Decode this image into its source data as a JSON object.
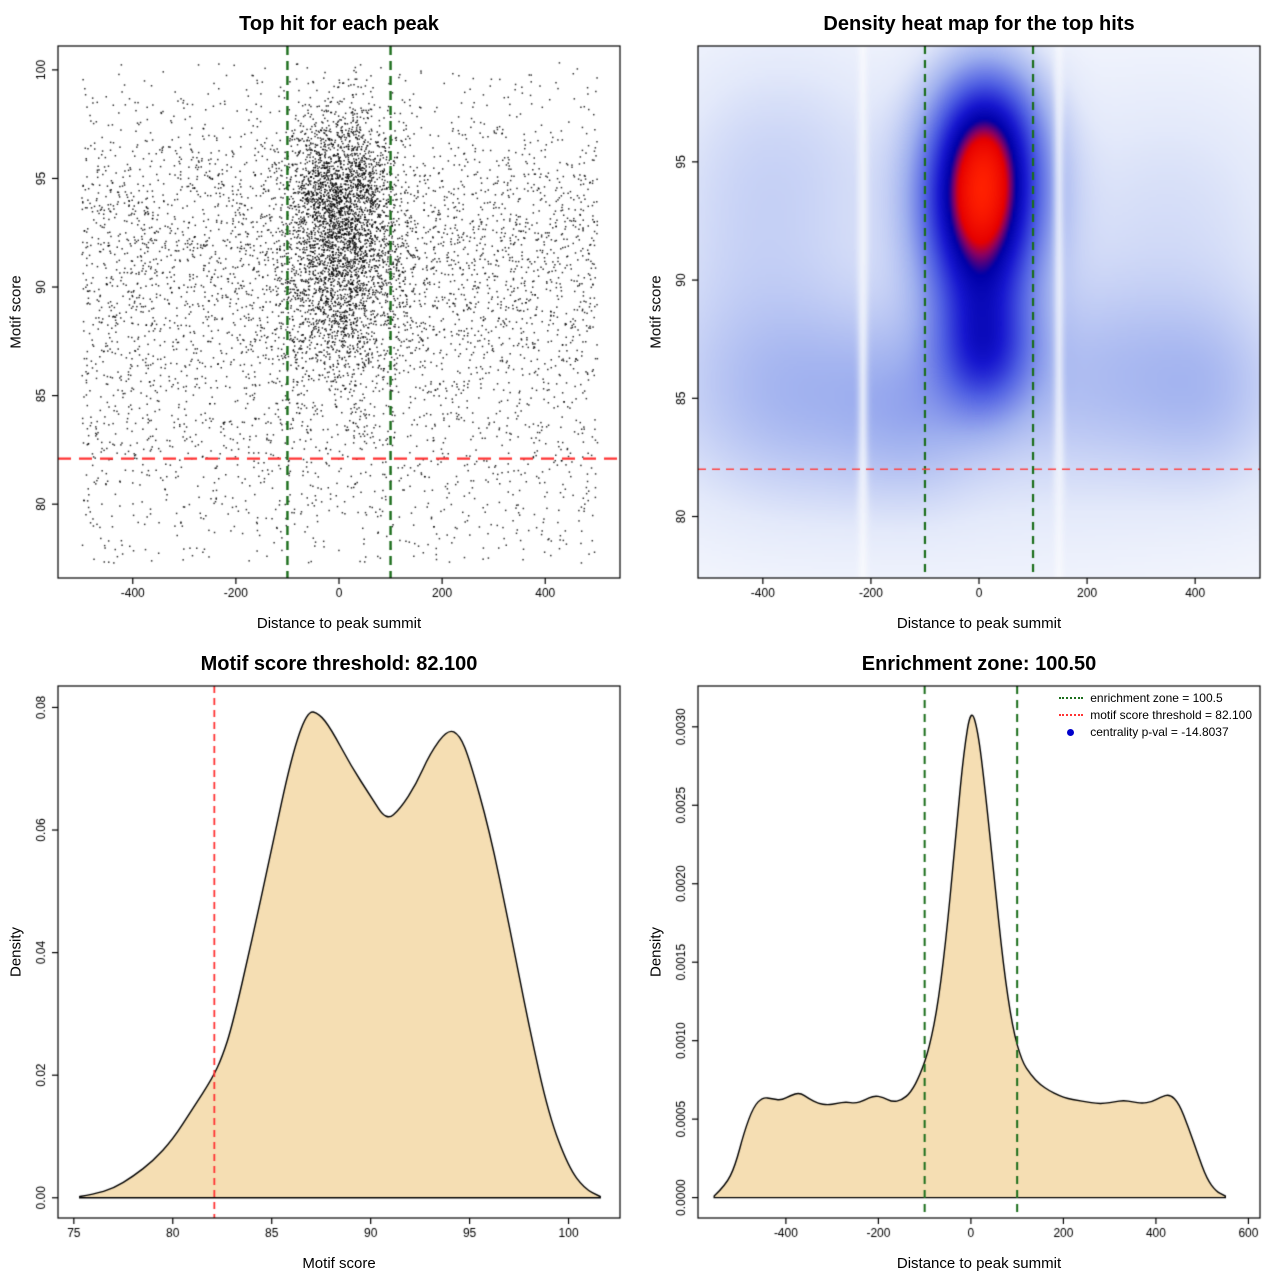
{
  "colors": {
    "density_fill": "#f5deb3",
    "density_stroke": "#000000",
    "threshold_red": "#ff3333",
    "zone_green": "#1b6e1b",
    "heat_max_red": "#ff2000",
    "point_black": "#000000"
  },
  "key_values": {
    "motif_score_threshold": 82.1,
    "enrichment_zone": 100.5,
    "centrality_p_val": -14.8037
  },
  "chart_data": [
    {
      "id": "top-hit-scatter",
      "type": "scatter",
      "title": "Top hit for each peak",
      "xlabel": "Distance to peak summit",
      "ylabel": "Motif score",
      "xlim": [
        -545,
        545
      ],
      "ylim": [
        76.6,
        101.1
      ],
      "xtick_values": [
        -400,
        -200,
        0,
        200,
        400
      ],
      "xtick_labels": [
        "-400",
        "-200",
        "0",
        "200",
        "400"
      ],
      "ytick_values": [
        80,
        85,
        90,
        95,
        100
      ],
      "ytick_labels": [
        "80",
        "85",
        "90",
        "95",
        "100"
      ],
      "points": {
        "seed": 1337,
        "size": 1.5,
        "alpha": 0.8,
        "color": "#000000",
        "x_clip": [
          -500,
          500
        ],
        "y_clip": [
          77.2,
          100.4
        ],
        "clusters": [
          {
            "n": 2600,
            "x": {
              "dist": "normal",
              "mean": 5,
              "sd": 55
            },
            "y": {
              "dist": "normal",
              "mean": 93.5,
              "sd": 2.5
            }
          },
          {
            "n": 900,
            "x": {
              "dist": "normal",
              "mean": 0,
              "sd": 75
            },
            "y": {
              "dist": "normal",
              "mean": 89.0,
              "sd": 2.8
            }
          },
          {
            "n": 2600,
            "x": {
              "dist": "uniform",
              "min": -500,
              "max": 500
            },
            "y": {
              "dist": "normal",
              "mean": 89.0,
              "sd": 4.3
            }
          },
          {
            "n": 1400,
            "x": {
              "dist": "uniform",
              "min": -500,
              "max": 500
            },
            "y": {
              "dist": "normal",
              "mean": 93.5,
              "sd": 3.2
            }
          },
          {
            "n": 500,
            "x": {
              "dist": "uniform",
              "min": -500,
              "max": 500
            },
            "y": {
              "dist": "uniform",
              "min": 77.3,
              "max": 84
            }
          }
        ]
      },
      "vlines": [
        {
          "x": -100,
          "color": "#1b6e1b",
          "width": 2.4,
          "dash": [
            9,
            6
          ]
        },
        {
          "x": 100,
          "color": "#1b6e1b",
          "width": 2.4,
          "dash": [
            9,
            6
          ]
        }
      ],
      "hlines": [
        {
          "y": 82.1,
          "color": "#ff3333",
          "width": 2.2,
          "dash": [
            13,
            8
          ]
        }
      ]
    },
    {
      "id": "density-heatmap",
      "type": "heatmap",
      "title": "Density heat map for the top hits",
      "xlabel": "Distance to peak summit",
      "ylabel": "Motif score",
      "xlim": [
        -520,
        520
      ],
      "ylim": [
        77.4,
        99.9
      ],
      "xtick_values": [
        -400,
        -200,
        0,
        200,
        400
      ],
      "xtick_labels": [
        "-400",
        "-200",
        "0",
        "200",
        "400"
      ],
      "ytick_values": [
        80,
        85,
        90,
        95
      ],
      "ytick_labels": [
        "80",
        "85",
        "90",
        "95"
      ],
      "heat": {
        "gamma": 0.65,
        "palette": [
          [
            0.0,
            "#ffffff"
          ],
          [
            0.15,
            "#e3e9fa"
          ],
          [
            0.35,
            "#9fb0ef"
          ],
          [
            0.55,
            "#4f5fe3"
          ],
          [
            0.7,
            "#1717cf"
          ],
          [
            0.8,
            "#0000a8"
          ],
          [
            0.86,
            "#8d0060"
          ],
          [
            0.9,
            "#e60000"
          ],
          [
            1.0,
            "#ff2000"
          ]
        ],
        "components": [
          {
            "cx": 5,
            "cy": 93.8,
            "sx": 75,
            "sy": 2.4,
            "w": 1.0
          },
          {
            "cx": 0,
            "cy": 90.6,
            "sx": 70,
            "sy": 2.2,
            "w": 0.42
          },
          {
            "cx": 10,
            "cy": 87.0,
            "sx": 62,
            "sy": 1.9,
            "w": 0.55
          },
          {
            "cx": 15,
            "cy": 96.8,
            "sx": 68,
            "sy": 2.0,
            "w": 0.45
          },
          {
            "cx": -300,
            "cy": 85.2,
            "sx": 160,
            "sy": 2.8,
            "w": 0.14
          },
          {
            "cx": -120,
            "cy": 84.3,
            "sx": 80,
            "sy": 2.3,
            "w": 0.1
          },
          {
            "cx": 250,
            "cy": 86.0,
            "sx": 140,
            "sy": 2.6,
            "w": 0.11
          },
          {
            "cx": 430,
            "cy": 85.3,
            "sx": 90,
            "sy": 2.6,
            "w": 0.1
          },
          {
            "cx": 0,
            "cy": 84.3,
            "sx": 480,
            "sy": 3.6,
            "w": 0.07
          },
          {
            "cx": -350,
            "cy": 95.0,
            "sx": 150,
            "sy": 3.6,
            "w": 0.08
          },
          {
            "cx": 360,
            "cy": 93.0,
            "sx": 160,
            "sy": 4.0,
            "w": 0.07
          },
          {
            "cx": -430,
            "cy": 90.0,
            "sx": 120,
            "sy": 5.0,
            "w": 0.06
          },
          {
            "cx": 0,
            "cy": 88.0,
            "sx": 600,
            "sy": 9.0,
            "w": 0.04
          }
        ],
        "gaps": [
          {
            "x": -215,
            "sigma": 7,
            "depth": 0.75
          },
          {
            "x": 148,
            "sigma": 7,
            "depth": 0.7
          }
        ]
      },
      "vlines": [
        {
          "x": -100,
          "color": "#1b6e1b",
          "width": 2.2,
          "dash": [
            8,
            6
          ]
        },
        {
          "x": 100,
          "color": "#1b6e1b",
          "width": 2.2,
          "dash": [
            8,
            6
          ]
        }
      ],
      "hlines": [
        {
          "y": 82.0,
          "color": "#ff4444",
          "width": 1.6,
          "dash": [
            8,
            6
          ]
        }
      ]
    },
    {
      "id": "motif-score-density",
      "type": "density",
      "title": "Motif score threshold: 82.100",
      "xlabel": "Motif score",
      "ylabel": "Density",
      "xlim": [
        74.2,
        102.6
      ],
      "ylim": [
        -0.0033,
        0.0835
      ],
      "xtick_values": [
        75,
        80,
        85,
        90,
        95,
        100
      ],
      "xtick_labels": [
        "75",
        "80",
        "85",
        "90",
        "95",
        "100"
      ],
      "ytick_values": [
        0,
        0.02,
        0.04,
        0.06,
        0.08
      ],
      "ytick_labels": [
        "0.00",
        "0.02",
        "0.04",
        "0.06",
        "0.08"
      ],
      "fill": "#f5deb3",
      "stroke": "#000000",
      "curve": [
        [
          75.3,
          0.0002
        ],
        [
          76,
          0.0006
        ],
        [
          77,
          0.0015
        ],
        [
          78,
          0.0035
        ],
        [
          79,
          0.006
        ],
        [
          80,
          0.0095
        ],
        [
          81,
          0.0145
        ],
        [
          82,
          0.0195
        ],
        [
          82.5,
          0.023
        ],
        [
          83,
          0.028
        ],
        [
          84,
          0.042
        ],
        [
          85,
          0.057
        ],
        [
          86,
          0.072
        ],
        [
          86.8,
          0.0795
        ],
        [
          87.4,
          0.079
        ],
        [
          88,
          0.0765
        ],
        [
          89,
          0.0705
        ],
        [
          90,
          0.0655
        ],
        [
          90.8,
          0.0615
        ],
        [
          91.5,
          0.0635
        ],
        [
          92.3,
          0.0675
        ],
        [
          93,
          0.0725
        ],
        [
          93.9,
          0.0765
        ],
        [
          94.5,
          0.0755
        ],
        [
          95,
          0.0715
        ],
        [
          96,
          0.06
        ],
        [
          97,
          0.0445
        ],
        [
          98,
          0.028
        ],
        [
          99,
          0.0135
        ],
        [
          100,
          0.005
        ],
        [
          100.8,
          0.0015
        ],
        [
          101.6,
          0.0002
        ]
      ],
      "vlines": [
        {
          "x": 82.1,
          "color": "#ff3333",
          "width": 1.8,
          "dash": [
            7,
            5
          ]
        }
      ],
      "hlines": []
    },
    {
      "id": "distance-density",
      "type": "density",
      "title": "Enrichment zone: 100.50",
      "xlabel": "Distance to peak summit",
      "ylabel": "Density",
      "xlim": [
        -590,
        625
      ],
      "ylim": [
        -0.00013,
        0.00326
      ],
      "xtick_values": [
        -400,
        -200,
        0,
        200,
        400,
        600
      ],
      "xtick_labels": [
        "-400",
        "-200",
        "0",
        "200",
        "400",
        "600"
      ],
      "ytick_values": [
        0,
        0.0005,
        0.001,
        0.0015,
        0.002,
        0.0025,
        0.003
      ],
      "ytick_labels": [
        "0.0000",
        "0.0005",
        "0.0010",
        "0.0015",
        "0.0020",
        "0.0025",
        "0.0030"
      ],
      "fill": "#f5deb3",
      "stroke": "#000000",
      "curve": [
        [
          -555,
          1e-05
        ],
        [
          -530,
          8e-05
        ],
        [
          -510,
          0.0002
        ],
        [
          -490,
          0.00042
        ],
        [
          -470,
          0.00058
        ],
        [
          -450,
          0.00064
        ],
        [
          -430,
          0.00063
        ],
        [
          -410,
          0.00062
        ],
        [
          -390,
          0.00065
        ],
        [
          -370,
          0.00067
        ],
        [
          -350,
          0.00063
        ],
        [
          -330,
          0.0006
        ],
        [
          -310,
          0.00059
        ],
        [
          -290,
          0.0006
        ],
        [
          -270,
          0.00061
        ],
        [
          -250,
          0.0006
        ],
        [
          -230,
          0.00062
        ],
        [
          -210,
          0.00065
        ],
        [
          -190,
          0.00064
        ],
        [
          -170,
          0.00061
        ],
        [
          -150,
          0.00062
        ],
        [
          -130,
          0.00067
        ],
        [
          -110,
          0.00078
        ],
        [
          -90,
          0.00095
        ],
        [
          -70,
          0.00125
        ],
        [
          -50,
          0.00175
        ],
        [
          -30,
          0.0024
        ],
        [
          -15,
          0.00285
        ],
        [
          0,
          0.00312
        ],
        [
          15,
          0.00298
        ],
        [
          30,
          0.00262
        ],
        [
          50,
          0.00205
        ],
        [
          70,
          0.00148
        ],
        [
          90,
          0.00108
        ],
        [
          110,
          0.00087
        ],
        [
          130,
          0.00078
        ],
        [
          150,
          0.00072
        ],
        [
          170,
          0.00068
        ],
        [
          190,
          0.00065
        ],
        [
          210,
          0.00063
        ],
        [
          230,
          0.00062
        ],
        [
          250,
          0.00061
        ],
        [
          270,
          0.0006
        ],
        [
          290,
          0.0006
        ],
        [
          310,
          0.00061
        ],
        [
          330,
          0.00062
        ],
        [
          350,
          0.00061
        ],
        [
          370,
          0.0006
        ],
        [
          390,
          0.00061
        ],
        [
          410,
          0.00064
        ],
        [
          430,
          0.00066
        ],
        [
          450,
          0.0006
        ],
        [
          470,
          0.00045
        ],
        [
          490,
          0.00028
        ],
        [
          510,
          0.00012
        ],
        [
          530,
          4e-05
        ],
        [
          550,
          1e-05
        ]
      ],
      "vlines": [
        {
          "x": -100,
          "color": "#1b6e1b",
          "width": 2.0,
          "dash": [
            8,
            6
          ]
        },
        {
          "x": 100,
          "color": "#1b6e1b",
          "width": 2.0,
          "dash": [
            8,
            6
          ]
        }
      ],
      "hlines": [],
      "legend": {
        "entries": [
          {
            "symbol": "dotted-line",
            "color": "#1b6e1b",
            "label": "enrichment zone = 100.5"
          },
          {
            "symbol": "dotted-line",
            "color": "#ff3333",
            "label": "motif score threshold = 82.100"
          },
          {
            "symbol": "dot",
            "color": "#0000cc",
            "label": "centrality p-val = -14.8037"
          }
        ]
      }
    }
  ]
}
